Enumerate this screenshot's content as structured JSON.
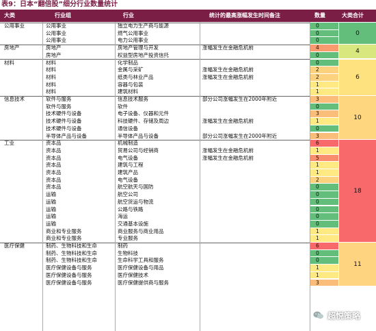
{
  "title": "表9：日本“翻倍股”细分行业数量统计",
  "headers": {
    "big": "大类",
    "sub": "行业组",
    "industry": "行业",
    "note": "统计的最高涨幅发生时间备注",
    "count": "数量",
    "total": "大类合计"
  },
  "colors": {
    "header_bg": "#7a1e46",
    "green": "#63be7b",
    "yellow_green": "#c6dd85",
    "yellow": "#ffe37f",
    "orange": "#fbaf73",
    "red": "#f8696b"
  },
  "groups": [
    {
      "big": "公用事业",
      "total": "0",
      "total_color": "#63be7b",
      "rows": [
        {
          "sub": "公用事业",
          "ind": "独立电力生产商与能源",
          "note": "",
          "count": "0",
          "color": "#63be7b"
        },
        {
          "sub": "公用事业",
          "ind": "燃气公用事业",
          "note": "",
          "count": "0",
          "color": "#63be7b"
        },
        {
          "sub": "公用事业",
          "ind": "电力公用事业",
          "note": "",
          "count": "0",
          "color": "#63be7b"
        }
      ]
    },
    {
      "big": "房地产",
      "total": "4",
      "total_color": "#d9e77f",
      "rows": [
        {
          "sub": "房地产",
          "ind": "房地产管理与开发",
          "note": "涨幅发生在金融危机前",
          "count": "4",
          "color": "#f99b6f"
        },
        {
          "sub": "房地产",
          "ind": "权益型房地产投资信托",
          "note": "",
          "count": "0",
          "color": "#63be7b"
        }
      ]
    },
    {
      "big": "材料",
      "total": "6",
      "total_color": "#fee280",
      "rows": [
        {
          "sub": "材料",
          "ind": "化学制品",
          "note": "",
          "count": "0",
          "color": "#63be7b"
        },
        {
          "sub": "材料",
          "ind": "金属与采矿",
          "note": "涨幅发生在金融危机前",
          "count": "2",
          "color": "#fdd27f"
        },
        {
          "sub": "材料",
          "ind": "纸类与林业产品",
          "note": "涨幅发生在金融危机前",
          "count": "2",
          "color": "#fdd27f"
        },
        {
          "sub": "材料",
          "ind": "容器与包装",
          "note": "",
          "count": "1",
          "color": "#ffe983"
        },
        {
          "sub": "材料",
          "ind": "建筑材料",
          "note": "",
          "count": "1",
          "color": "#ffe983"
        }
      ]
    },
    {
      "big": "信息技术",
      "total": "10",
      "total_color": "#fed680",
      "rows": [
        {
          "sub": "软件与服务",
          "ind": "信息技术服务",
          "note": "部分公司涨幅发生在2000年附近",
          "count": "3",
          "color": "#fbbd7a"
        },
        {
          "sub": "软件与服务",
          "ind": "软件",
          "note": "",
          "count": "0",
          "color": "#63be7b"
        },
        {
          "sub": "技术硬件与设备",
          "ind": "电子设备、仪器和元件",
          "note": "",
          "count": "3",
          "color": "#fbbd7a"
        },
        {
          "sub": "技术硬件与设备",
          "ind": "科技硬件、存储及周边",
          "note": "涨幅发生在金融危机前",
          "count": "1",
          "color": "#ffe983"
        },
        {
          "sub": "技术硬件与设备",
          "ind": "通信设备",
          "note": "",
          "count": "0",
          "color": "#63be7b"
        },
        {
          "sub": "半导体产品与设备",
          "ind": "半导体产品与设备",
          "note": "部分公司涨幅发生在2000年附近",
          "count": "3",
          "color": "#fbbd7a"
        }
      ]
    },
    {
      "big": "工业",
      "total": "18",
      "total_color": "#f8696b",
      "rows": [
        {
          "sub": "资本品",
          "ind": "机械制造",
          "note": "",
          "count": "6",
          "color": "#f8696b"
        },
        {
          "sub": "资本品",
          "ind": "贸易公司与经销商",
          "note": "涨幅发生在金融危机前",
          "count": "1",
          "color": "#ffe983"
        },
        {
          "sub": "资本品",
          "ind": "电气设备",
          "note": "涨幅发生在金融危机前",
          "count": "5",
          "color": "#f98e6f"
        },
        {
          "sub": "资本品",
          "ind": "建筑与工程",
          "note": "",
          "count": "1",
          "color": "#ffe983"
        },
        {
          "sub": "资本品",
          "ind": "建筑产品",
          "note": "",
          "count": "1",
          "color": "#ffe983"
        },
        {
          "sub": "资本品",
          "ind": "电气设备",
          "note": "",
          "count": "2",
          "color": "#fdd27f"
        },
        {
          "sub": "资本品",
          "ind": "航空航天与国防",
          "note": "",
          "count": "0",
          "color": "#63be7b"
        },
        {
          "sub": "运输",
          "ind": "航空公司",
          "note": "",
          "count": "0",
          "color": "#63be7b"
        },
        {
          "sub": "运输",
          "ind": "航空货运与物流",
          "note": "",
          "count": "0",
          "color": "#63be7b"
        },
        {
          "sub": "运输",
          "ind": "公路与铁路",
          "note": "",
          "count": "0",
          "color": "#63be7b"
        },
        {
          "sub": "运输",
          "ind": "海运",
          "note": "",
          "count": "0",
          "color": "#63be7b"
        },
        {
          "sub": "运输",
          "ind": "交通基本设施",
          "note": "",
          "count": "0",
          "color": "#63be7b"
        },
        {
          "sub": "商业和专业服务",
          "ind": "商业服务与商业用品",
          "note": "",
          "count": "1",
          "color": "#ffe983"
        },
        {
          "sub": "商业和专业服务",
          "ind": "专业服务",
          "note": "",
          "count": "1",
          "color": "#ffe983"
        }
      ]
    },
    {
      "big": "医疗保健",
      "total": "11",
      "total_color": "#fed481",
      "rows": [
        {
          "sub": "制药、生物科技和生命",
          "ind": "制药",
          "note": "",
          "count": "6",
          "color": "#f8696b"
        },
        {
          "sub": "制药、生物科技和生命",
          "ind": "生物科技",
          "note": "",
          "count": "0",
          "color": "#63be7b"
        },
        {
          "sub": "制药、生物科技和生命",
          "ind": "生命科学工具和服务",
          "note": "",
          "count": "0",
          "color": "#63be7b"
        },
        {
          "sub": "医疗保健设备与服务",
          "ind": "医疗保健设备与用品",
          "note": "",
          "count": "1",
          "color": "#ffe983"
        },
        {
          "sub": "医疗保健设备与服务",
          "ind": "医疗保健技术",
          "note": "",
          "count": "1",
          "color": "#ffe983"
        },
        {
          "sub": "医疗保健设备与服务",
          "ind": "医疗保健提供商与服务",
          "note": "",
          "count": "3",
          "color": "#fbbd7a"
        }
      ]
    }
  ],
  "watermark": {
    "text": "超悦策略",
    "icon": "wechat-icon"
  }
}
